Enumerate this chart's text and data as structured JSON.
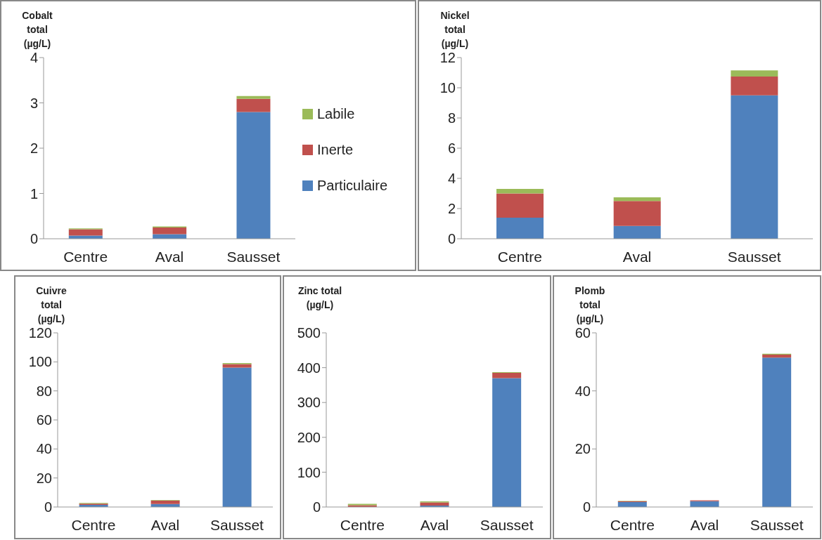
{
  "chart_data": [
    {
      "type": "bar",
      "stacked": true,
      "ylabel": "Cobalt total (µg/L)",
      "categories": [
        "Centre",
        "Aval",
        "Sausset"
      ],
      "ylim": [
        0,
        4
      ],
      "yticks": [
        0,
        1,
        2,
        3,
        4
      ],
      "legend": "right",
      "series": [
        {
          "name": "Particulaire",
          "color": "#4f81bd",
          "values": [
            0.07,
            0.1,
            2.8
          ]
        },
        {
          "name": "Inerte",
          "color": "#c0504d",
          "values": [
            0.14,
            0.15,
            0.29
          ]
        },
        {
          "name": "Labile",
          "color": "#9bbb59",
          "values": [
            0.02,
            0.02,
            0.06
          ]
        }
      ]
    },
    {
      "type": "bar",
      "stacked": true,
      "ylabel": "Nickel total (µg/L)",
      "categories": [
        "Centre",
        "Aval",
        "Sausset"
      ],
      "ylim": [
        0,
        12
      ],
      "yticks": [
        0,
        2,
        4,
        6,
        8,
        10,
        12
      ],
      "series": [
        {
          "color": "#4f81bd",
          "values": [
            1.4,
            0.85,
            9.5
          ]
        },
        {
          "color": "#c0504d",
          "values": [
            1.6,
            1.65,
            1.25
          ]
        },
        {
          "color": "#9bbb59",
          "values": [
            0.3,
            0.25,
            0.4
          ]
        }
      ]
    },
    {
      "type": "bar",
      "stacked": true,
      "ylabel": "Cuivre total (µg/L)",
      "categories": [
        "Centre",
        "Aval",
        "Sausset"
      ],
      "ylim": [
        0,
        120
      ],
      "yticks": [
        0,
        20,
        40,
        60,
        80,
        100,
        120
      ],
      "series": [
        {
          "color": "#4f81bd",
          "values": [
            1.5,
            2,
            96
          ]
        },
        {
          "color": "#c0504d",
          "values": [
            0.8,
            2.5,
            2.5
          ]
        },
        {
          "color": "#9bbb59",
          "values": [
            0.5,
            0.3,
            0.7
          ]
        }
      ]
    },
    {
      "type": "bar",
      "stacked": true,
      "ylabel": "Zinc total (µg/L)",
      "categories": [
        "Centre",
        "Aval",
        "Sausset"
      ],
      "ylim": [
        0,
        500
      ],
      "yticks": [
        0,
        100,
        200,
        300,
        400,
        500
      ],
      "series": [
        {
          "color": "#4f81bd",
          "values": [
            null,
            4,
            370
          ]
        },
        {
          "color": "#c0504d",
          "values": [
            5,
            9,
            15
          ]
        },
        {
          "color": "#9bbb59",
          "values": [
            4,
            3,
            2
          ]
        }
      ]
    },
    {
      "type": "bar",
      "stacked": true,
      "ylabel": "Plomb total (µg/L)",
      "categories": [
        "Centre",
        "Aval",
        "Sausset"
      ],
      "ylim": [
        0,
        60
      ],
      "yticks": [
        0,
        20,
        40,
        60
      ],
      "series": [
        {
          "color": "#4f81bd",
          "values": [
            1.7,
            2,
            51.5
          ]
        },
        {
          "color": "#c0504d",
          "values": [
            0.3,
            0.3,
            1
          ]
        },
        {
          "color": "#9bbb59",
          "values": [
            0.1,
            null,
            0.3
          ]
        }
      ]
    }
  ]
}
